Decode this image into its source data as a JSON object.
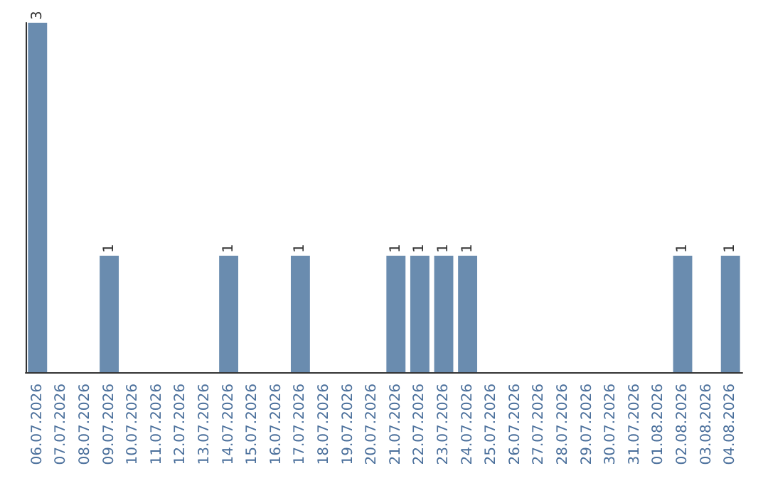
{
  "chart_data": {
    "type": "bar",
    "categories": [
      "06.07.2026",
      "07.07.2026",
      "08.07.2026",
      "09.07.2026",
      "10.07.2026",
      "11.07.2026",
      "12.07.2026",
      "13.07.2026",
      "14.07.2026",
      "15.07.2026",
      "16.07.2026",
      "17.07.2026",
      "18.07.2026",
      "19.07.2026",
      "20.07.2026",
      "21.07.2026",
      "22.07.2026",
      "23.07.2026",
      "24.07.2026",
      "25.07.2026",
      "26.07.2026",
      "27.07.2026",
      "28.07.2026",
      "29.07.2026",
      "30.07.2026",
      "31.07.2026",
      "01.08.2026",
      "02.08.2026",
      "03.08.2026",
      "04.08.2026"
    ],
    "values": [
      3,
      0,
      0,
      1,
      0,
      0,
      0,
      0,
      1,
      0,
      0,
      1,
      0,
      0,
      0,
      1,
      1,
      1,
      1,
      0,
      0,
      0,
      0,
      0,
      0,
      0,
      0,
      1,
      0,
      1
    ],
    "value_labels": [
      "3",
      null,
      null,
      "1",
      null,
      null,
      null,
      null,
      "1",
      null,
      null,
      "1",
      null,
      null,
      null,
      "1",
      "1",
      "1",
      "1",
      null,
      null,
      null,
      null,
      null,
      null,
      null,
      null,
      "1",
      null,
      "1"
    ],
    "color": "#6a8caf",
    "grid": false,
    "tick_labels": "x"
  }
}
